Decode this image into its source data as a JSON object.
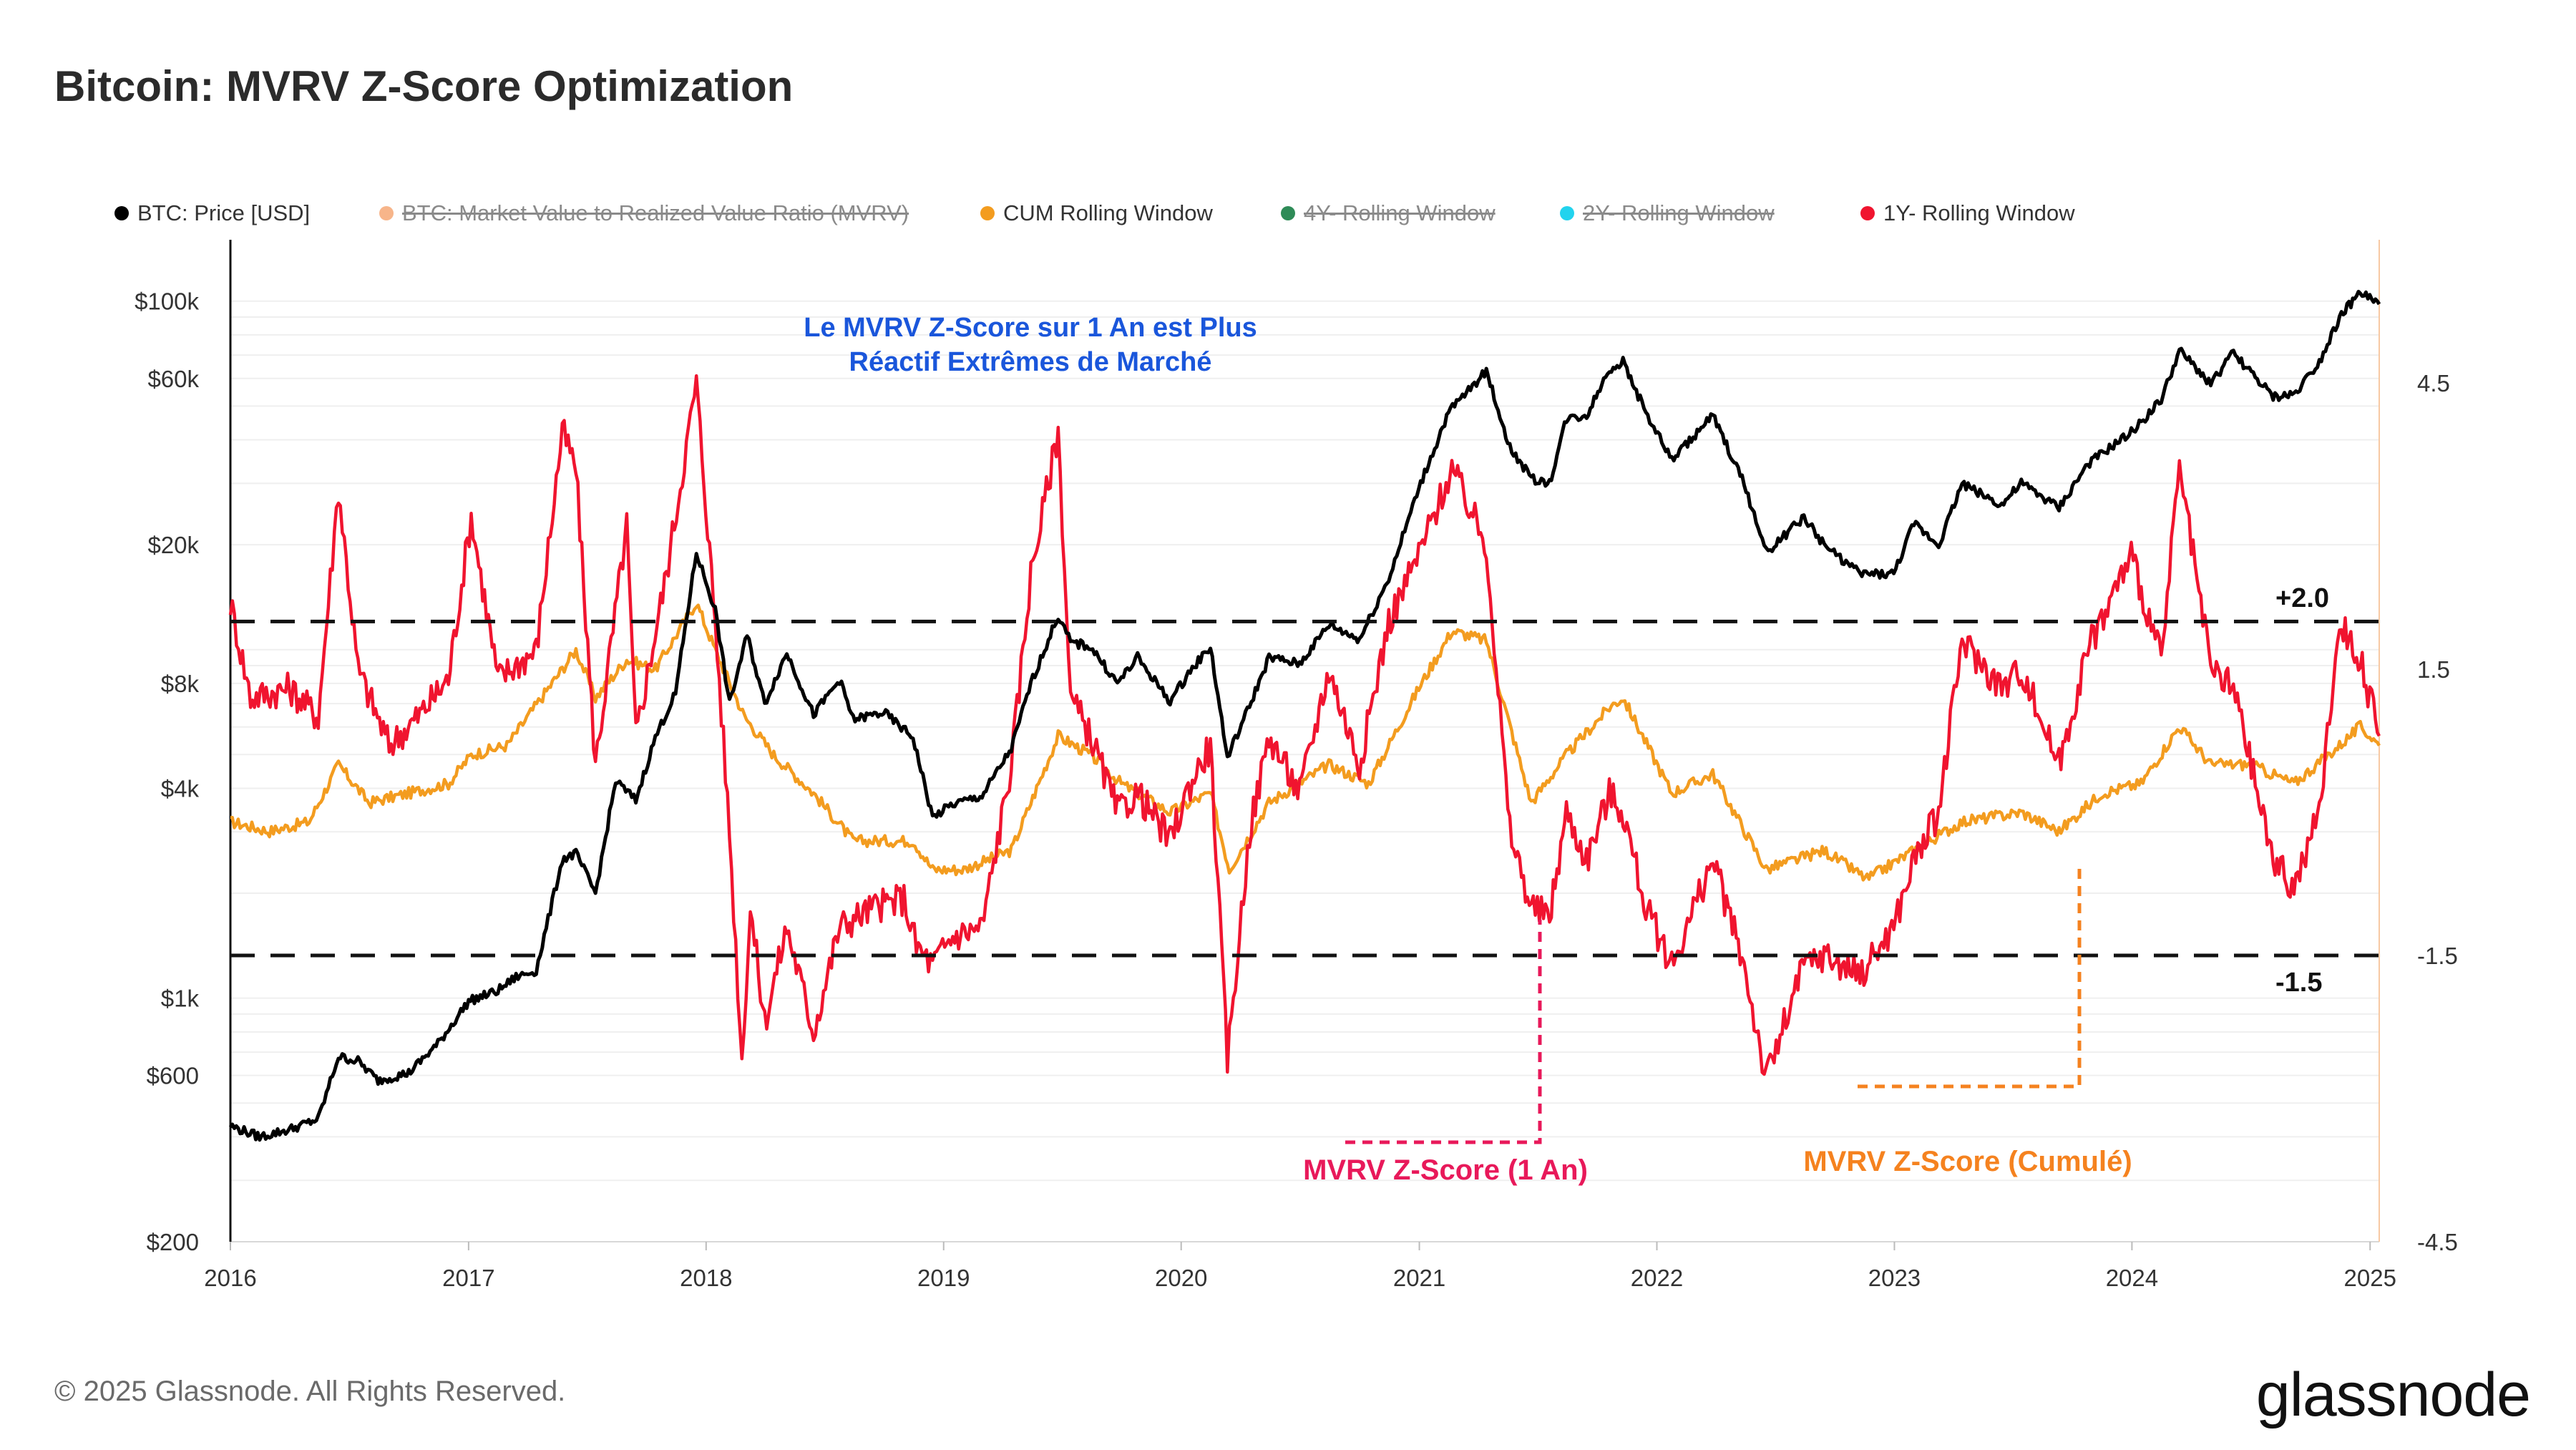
{
  "header": {
    "title": "Bitcoin: MVRV Z-Score Optimization"
  },
  "legend": {
    "items": [
      {
        "label": "BTC: Price [USD]",
        "color": "#000000",
        "active": true
      },
      {
        "label": "BTC: Market Value to Realized Value Ratio (MVRV)",
        "color": "#f7b58a",
        "active": false
      },
      {
        "label": "CUM Rolling Window",
        "color": "#f39c1f",
        "active": true
      },
      {
        "label": "4Y- Rolling Window",
        "color": "#2e8b57",
        "active": false
      },
      {
        "label": "2Y- Rolling Window",
        "color": "#22d3ee",
        "active": false
      },
      {
        "label": "1Y- Rolling Window",
        "color": "#f0142f",
        "active": true
      }
    ]
  },
  "annotations": {
    "headline_line1": "Le MVRV Z-Score sur 1 An est Plus",
    "headline_line2": "Réactif Extrêmes de Marché",
    "headline_color": "#1a56db",
    "upper_threshold_label": "+2.0",
    "lower_threshold_label": "-1.5",
    "one_year_label": "MVRV Z-Score (1 An)",
    "one_year_color": "#e8195a",
    "cumulative_label": "MVRV Z-Score (Cumulé)",
    "cumulative_color": "#f5821f"
  },
  "footer": {
    "copyright": "© 2025 Glassnode. All Rights Reserved.",
    "brand": "glassnode"
  },
  "chart_data": {
    "type": "line",
    "x_range": [
      "2016-01-01",
      "2025-01-15"
    ],
    "x_ticks": [
      "2016",
      "2017",
      "2018",
      "2019",
      "2020",
      "2021",
      "2022",
      "2023",
      "2024",
      "2025"
    ],
    "y_left": {
      "scale": "log",
      "range": [
        200,
        150000
      ],
      "ticks": [
        200,
        600,
        1000,
        4000,
        8000,
        20000,
        60000,
        100000
      ],
      "tick_labels": [
        "$200",
        "$600",
        "$1k",
        "$4k",
        "$8k",
        "$20k",
        "$60k",
        "$100k"
      ]
    },
    "y_right": {
      "range": [
        -4.5,
        6
      ],
      "ticks": [
        -4.5,
        -1.5,
        1.5,
        4.5
      ],
      "tick_labels": [
        "-4.5",
        "-1.5",
        "1.5",
        "4.5"
      ]
    },
    "thresholds": [
      2.0,
      -1.5
    ],
    "grid": true,
    "legend_position": "top",
    "series": [
      {
        "name": "BTC: Price [USD]",
        "axis": "left",
        "color": "#000000",
        "points": [
          [
            "2016-01-01",
            430
          ],
          [
            "2016-02-15",
            400
          ],
          [
            "2016-04-01",
            420
          ],
          [
            "2016-05-15",
            450
          ],
          [
            "2016-06-15",
            680
          ],
          [
            "2016-07-15",
            660
          ],
          [
            "2016-08-15",
            580
          ],
          [
            "2016-10-01",
            610
          ],
          [
            "2016-11-15",
            740
          ],
          [
            "2017-01-01",
            980
          ],
          [
            "2017-02-15",
            1050
          ],
          [
            "2017-03-15",
            1150
          ],
          [
            "2017-04-15",
            1200
          ],
          [
            "2017-05-25",
            2500
          ],
          [
            "2017-06-15",
            2600
          ],
          [
            "2017-07-15",
            2000
          ],
          [
            "2017-08-15",
            4200
          ],
          [
            "2017-09-15",
            3700
          ],
          [
            "2017-10-15",
            5600
          ],
          [
            "2017-11-15",
            7500
          ],
          [
            "2017-12-17",
            19000
          ],
          [
            "2018-01-15",
            13000
          ],
          [
            "2018-02-06",
            7000
          ],
          [
            "2018-03-05",
            11000
          ],
          [
            "2018-04-01",
            7000
          ],
          [
            "2018-05-05",
            9800
          ],
          [
            "2018-06-15",
            6500
          ],
          [
            "2018-07-25",
            8200
          ],
          [
            "2018-08-15",
            6300
          ],
          [
            "2018-10-01",
            6600
          ],
          [
            "2018-11-15",
            5600
          ],
          [
            "2018-12-15",
            3300
          ],
          [
            "2019-01-15",
            3600
          ],
          [
            "2019-03-01",
            3800
          ],
          [
            "2019-04-15",
            5200
          ],
          [
            "2019-05-15",
            8000
          ],
          [
            "2019-06-26",
            12500
          ],
          [
            "2019-07-15",
            10500
          ],
          [
            "2019-08-15",
            10200
          ],
          [
            "2019-09-25",
            8000
          ],
          [
            "2019-10-26",
            9500
          ],
          [
            "2019-12-15",
            7100
          ],
          [
            "2020-01-15",
            8700
          ],
          [
            "2020-02-15",
            10200
          ],
          [
            "2020-03-12",
            4900
          ],
          [
            "2020-04-15",
            6900
          ],
          [
            "2020-05-15",
            9500
          ],
          [
            "2020-07-01",
            9100
          ],
          [
            "2020-08-15",
            11800
          ],
          [
            "2020-10-01",
            10700
          ],
          [
            "2020-11-15",
            16000
          ],
          [
            "2020-12-31",
            29000
          ],
          [
            "2021-02-15",
            48000
          ],
          [
            "2021-04-14",
            63000
          ],
          [
            "2021-05-20",
            38000
          ],
          [
            "2021-06-22",
            31000
          ],
          [
            "2021-07-20",
            30000
          ],
          [
            "2021-08-15",
            46000
          ],
          [
            "2021-09-15",
            47000
          ],
          [
            "2021-10-20",
            64000
          ],
          [
            "2021-11-10",
            67000
          ],
          [
            "2021-12-15",
            48000
          ],
          [
            "2022-01-24",
            35000
          ],
          [
            "2022-03-28",
            47000
          ],
          [
            "2022-05-15",
            30000
          ],
          [
            "2022-06-18",
            19000
          ],
          [
            "2022-08-15",
            24000
          ],
          [
            "2022-09-15",
            20000
          ],
          [
            "2022-11-09",
            16500
          ],
          [
            "2022-12-31",
            16500
          ],
          [
            "2023-01-31",
            23000
          ],
          [
            "2023-03-10",
            20000
          ],
          [
            "2023-04-15",
            30000
          ],
          [
            "2023-06-15",
            26000
          ],
          [
            "2023-07-15",
            30000
          ],
          [
            "2023-09-11",
            25500
          ],
          [
            "2023-10-25",
            34000
          ],
          [
            "2023-12-31",
            42000
          ],
          [
            "2024-02-15",
            52000
          ],
          [
            "2024-03-14",
            72000
          ],
          [
            "2024-05-01",
            58000
          ],
          [
            "2024-06-05",
            71000
          ],
          [
            "2024-08-05",
            53000
          ],
          [
            "2024-09-06",
            54000
          ],
          [
            "2024-10-15",
            67000
          ],
          [
            "2024-11-15",
            90000
          ],
          [
            "2024-12-17",
            106000
          ],
          [
            "2025-01-15",
            98000
          ]
        ]
      },
      {
        "name": "CUM Rolling Window",
        "axis": "right",
        "color": "#f39c1f",
        "points": [
          [
            "2016-01-01",
            -0.1
          ],
          [
            "2016-03-01",
            -0.2
          ],
          [
            "2016-05-01",
            -0.1
          ],
          [
            "2016-06-15",
            0.5
          ],
          [
            "2016-08-01",
            0.1
          ],
          [
            "2016-10-01",
            0.2
          ],
          [
            "2016-12-01",
            0.3
          ],
          [
            "2017-01-05",
            0.6
          ],
          [
            "2017-03-01",
            0.7
          ],
          [
            "2017-05-25",
            1.5
          ],
          [
            "2017-06-15",
            1.7
          ],
          [
            "2017-07-15",
            1.2
          ],
          [
            "2017-09-01",
            1.6
          ],
          [
            "2017-10-15",
            1.5
          ],
          [
            "2017-12-17",
            2.2
          ],
          [
            "2018-01-15",
            1.7
          ],
          [
            "2018-03-01",
            1.0
          ],
          [
            "2018-04-15",
            0.6
          ],
          [
            "2018-06-15",
            0.2
          ],
          [
            "2018-08-15",
            -0.3
          ],
          [
            "2018-10-15",
            -0.3
          ],
          [
            "2018-11-15",
            -0.3
          ],
          [
            "2018-12-15",
            -0.6
          ],
          [
            "2019-02-01",
            -0.6
          ],
          [
            "2019-04-15",
            -0.4
          ],
          [
            "2019-06-26",
            0.8
          ],
          [
            "2019-08-15",
            0.6
          ],
          [
            "2019-10-01",
            0.3
          ],
          [
            "2019-12-15",
            0.0
          ],
          [
            "2020-02-15",
            0.2
          ],
          [
            "2020-03-15",
            -0.6
          ],
          [
            "2020-05-15",
            0.1
          ],
          [
            "2020-08-15",
            0.5
          ],
          [
            "2020-10-15",
            0.3
          ],
          [
            "2020-12-31",
            1.3
          ],
          [
            "2021-02-20",
            1.9
          ],
          [
            "2021-04-14",
            1.8
          ],
          [
            "2021-06-22",
            0.1
          ],
          [
            "2021-08-15",
            0.6
          ],
          [
            "2021-10-20",
            1.1
          ],
          [
            "2021-11-10",
            1.2
          ],
          [
            "2022-01-24",
            0.2
          ],
          [
            "2022-03-28",
            0.4
          ],
          [
            "2022-06-18",
            -0.6
          ],
          [
            "2022-09-15",
            -0.4
          ],
          [
            "2022-11-20",
            -0.7
          ],
          [
            "2023-01-31",
            -0.4
          ],
          [
            "2023-04-15",
            -0.1
          ],
          [
            "2023-07-15",
            0.0
          ],
          [
            "2023-09-11",
            -0.2
          ],
          [
            "2023-11-15",
            0.2
          ],
          [
            "2024-01-15",
            0.3
          ],
          [
            "2024-03-14",
            0.9
          ],
          [
            "2024-05-01",
            0.5
          ],
          [
            "2024-07-01",
            0.5
          ],
          [
            "2024-09-06",
            0.3
          ],
          [
            "2024-11-15",
            0.7
          ],
          [
            "2024-12-17",
            0.9
          ],
          [
            "2025-01-15",
            0.7
          ]
        ]
      },
      {
        "name": "1Y- Rolling Window",
        "axis": "right",
        "color": "#f0142f",
        "points": [
          [
            "2016-01-01",
            2.2
          ],
          [
            "2016-02-01",
            1.2
          ],
          [
            "2016-04-01",
            1.3
          ],
          [
            "2016-05-15",
            1.0
          ],
          [
            "2016-06-15",
            3.4
          ],
          [
            "2016-07-15",
            1.5
          ],
          [
            "2016-09-01",
            0.7
          ],
          [
            "2016-10-15",
            1.0
          ],
          [
            "2016-12-01",
            1.4
          ],
          [
            "2017-01-05",
            3.1
          ],
          [
            "2017-02-15",
            1.4
          ],
          [
            "2017-04-15",
            1.7
          ],
          [
            "2017-05-25",
            4.0
          ],
          [
            "2017-06-15",
            3.6
          ],
          [
            "2017-07-15",
            0.5
          ],
          [
            "2017-09-01",
            3.0
          ],
          [
            "2017-09-15",
            0.8
          ],
          [
            "2017-11-01",
            2.5
          ],
          [
            "2017-12-17",
            4.5
          ],
          [
            "2018-01-15",
            2.0
          ],
          [
            "2018-02-06",
            -0.2
          ],
          [
            "2018-02-25",
            -2.6
          ],
          [
            "2018-03-10",
            -1.0
          ],
          [
            "2018-04-01",
            -2.2
          ],
          [
            "2018-05-05",
            -1.2
          ],
          [
            "2018-06-15",
            -2.3
          ],
          [
            "2018-07-25",
            -1.2
          ],
          [
            "2018-09-15",
            -1.0
          ],
          [
            "2018-11-01",
            -0.9
          ],
          [
            "2018-11-20",
            -1.4
          ],
          [
            "2018-12-15",
            -1.6
          ],
          [
            "2019-01-15",
            -1.3
          ],
          [
            "2019-03-01",
            -1.2
          ],
          [
            "2019-04-15",
            0.5
          ],
          [
            "2019-05-15",
            2.5
          ],
          [
            "2019-06-26",
            4.0
          ],
          [
            "2019-07-15",
            1.2
          ],
          [
            "2019-08-15",
            0.8
          ],
          [
            "2019-09-25",
            0.0
          ],
          [
            "2019-10-26",
            0.2
          ],
          [
            "2019-12-15",
            -0.3
          ],
          [
            "2020-01-15",
            0.3
          ],
          [
            "2020-02-15",
            0.7
          ],
          [
            "2020-03-12",
            -2.6
          ],
          [
            "2020-04-15",
            -0.2
          ],
          [
            "2020-05-15",
            0.8
          ],
          [
            "2020-07-01",
            0.2
          ],
          [
            "2020-08-15",
            1.5
          ],
          [
            "2020-10-01",
            0.5
          ],
          [
            "2020-11-15",
            2.0
          ],
          [
            "2020-12-31",
            2.7
          ],
          [
            "2021-02-20",
            3.6
          ],
          [
            "2021-04-14",
            2.8
          ],
          [
            "2021-05-20",
            -0.2
          ],
          [
            "2021-06-22",
            -1.0
          ],
          [
            "2021-07-20",
            -1.1
          ],
          [
            "2021-08-15",
            0.0
          ],
          [
            "2021-09-15",
            -0.5
          ],
          [
            "2021-10-20",
            0.2
          ],
          [
            "2021-11-10",
            0.0
          ],
          [
            "2021-12-15",
            -1.0
          ],
          [
            "2022-01-24",
            -1.6
          ],
          [
            "2022-03-28",
            -0.5
          ],
          [
            "2022-05-15",
            -1.6
          ],
          [
            "2022-06-18",
            -2.8
          ],
          [
            "2022-08-15",
            -1.6
          ],
          [
            "2022-09-15",
            -1.5
          ],
          [
            "2022-11-09",
            -1.7
          ],
          [
            "2022-12-31",
            -1.2
          ],
          [
            "2023-01-31",
            -0.5
          ],
          [
            "2023-03-10",
            0.0
          ],
          [
            "2023-04-15",
            1.8
          ],
          [
            "2023-06-15",
            1.3
          ],
          [
            "2023-07-15",
            1.5
          ],
          [
            "2023-09-11",
            0.5
          ],
          [
            "2023-10-25",
            1.7
          ],
          [
            "2023-12-31",
            2.7
          ],
          [
            "2024-02-15",
            1.6
          ],
          [
            "2024-03-14",
            3.6
          ],
          [
            "2024-05-01",
            1.5
          ],
          [
            "2024-06-05",
            1.3
          ],
          [
            "2024-08-05",
            -0.5
          ],
          [
            "2024-09-06",
            -0.8
          ],
          [
            "2024-10-15",
            0.0
          ],
          [
            "2024-11-15",
            2.0
          ],
          [
            "2024-12-17",
            1.6
          ],
          [
            "2025-01-15",
            0.8
          ]
        ]
      }
    ]
  }
}
